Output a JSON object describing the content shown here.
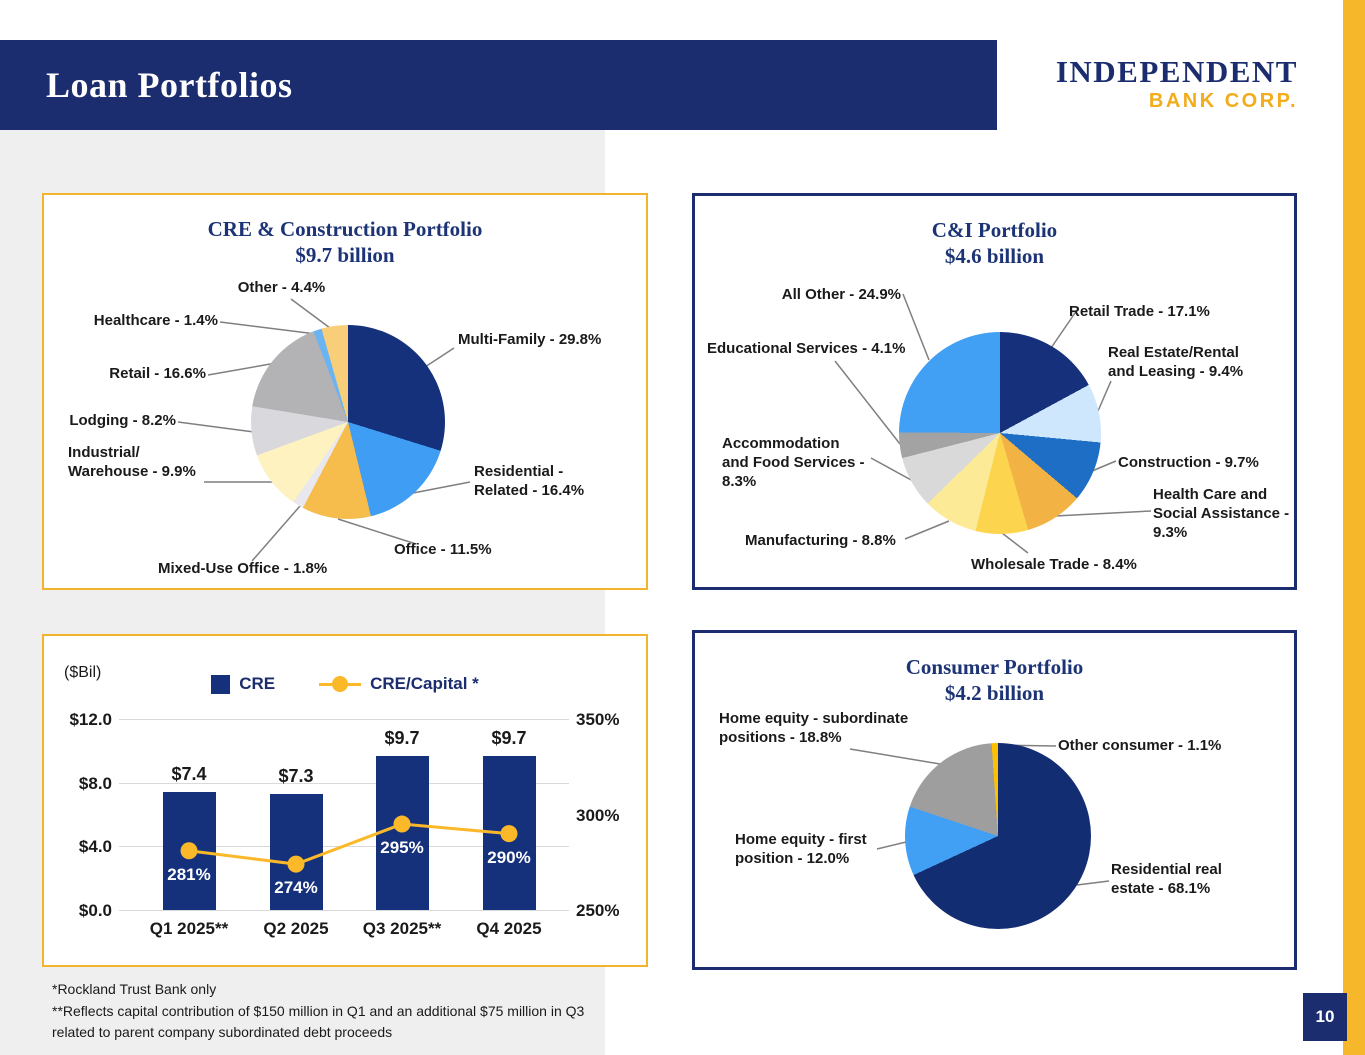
{
  "header": {
    "title": "Loan Portfolios",
    "logo_line1": "INDEPENDENT",
    "logo_line2": "BANK CORP.",
    "page_number": "10"
  },
  "colors": {
    "navy": "#1b2d6e",
    "gold_accent": "#f6b72b",
    "bar_navy": "#16317c",
    "line_gold": "#fbb829",
    "left_background": "#efefef",
    "gridline": "#d9d9d9",
    "leader_line": "#7f7f7f"
  },
  "footnotes": {
    "line1": "*Rockland Trust Bank only",
    "line2": "**Reflects capital contribution of $150 million in Q1 and an additional $75 million in Q3 related to parent company subordinated debt proceeds"
  },
  "chart_data": [
    {
      "id": "cre_construction_pie",
      "type": "pie",
      "title": "CRE & Construction Portfolio",
      "subtitle": "$9.7 billion",
      "slices": [
        {
          "label": "Multi-Family - 29.8%",
          "value": 29.8,
          "color": "#16317c"
        },
        {
          "label": "Residential -\nRelated - 16.4%",
          "value": 16.4,
          "color": "#3f9df3"
        },
        {
          "label": "Office - 11.5%",
          "value": 11.5,
          "color": "#f6bc4c"
        },
        {
          "label": "Mixed-Use Office - 1.8%",
          "value": 1.8,
          "color": "#e8e8ee"
        },
        {
          "label": "Industrial/\nWarehouse - 9.9%",
          "value": 9.9,
          "color": "#fdf2c0"
        },
        {
          "label": "Lodging - 8.2%",
          "value": 8.2,
          "color": "#d9d9dd"
        },
        {
          "label": "Retail - 16.6%",
          "value": 16.6,
          "color": "#b3b3b6"
        },
        {
          "label": "Healthcare - 1.4%",
          "value": 1.4,
          "color": "#6cb3f2"
        },
        {
          "label": "Other - 4.4%",
          "value": 4.4,
          "color": "#f8cf78"
        }
      ]
    },
    {
      "id": "ci_pie",
      "type": "pie",
      "title": "C&I Portfolio",
      "subtitle": "$4.6 billion",
      "slices": [
        {
          "label": "Retail Trade - 17.1%",
          "value": 17.1,
          "color": "#16307c"
        },
        {
          "label": "Real Estate/Rental\nand Leasing - 9.4%",
          "value": 9.4,
          "color": "#cfe7fc"
        },
        {
          "label": "Construction - 9.7%",
          "value": 9.7,
          "color": "#1e6ec6"
        },
        {
          "label": "Health Care and\nSocial Assistance -\n9.3%",
          "value": 9.3,
          "color": "#f2b344"
        },
        {
          "label": "Wholesale Trade - 8.4%",
          "value": 8.4,
          "color": "#fdd44e"
        },
        {
          "label": "Manufacturing - 8.8%",
          "value": 8.8,
          "color": "#fdea96"
        },
        {
          "label": "Accommodation\nand Food Services -\n8.3%",
          "value": 8.3,
          "color": "#d9d9d9"
        },
        {
          "label": "Educational Services - 4.1%",
          "value": 4.1,
          "color": "#a3a3a3"
        },
        {
          "label": "All Other  - 24.9%",
          "value": 24.9,
          "color": "#41a0f4"
        }
      ]
    },
    {
      "id": "cre_trend",
      "type": "bar+line",
      "unit_label": "($Bil)",
      "categories": [
        "Q1 2025**",
        "Q2 2025",
        "Q3 2025**",
        "Q4 2025"
      ],
      "series": [
        {
          "name": "CRE",
          "type": "bar",
          "values": [
            7.4,
            7.3,
            9.7,
            9.7
          ],
          "labels": [
            "$7.4",
            "$7.3",
            "$9.7",
            "$9.7"
          ],
          "color": "#16317c"
        },
        {
          "name": "CRE/Capital *",
          "type": "line",
          "values": [
            281,
            274,
            295,
            290
          ],
          "labels": [
            "281%",
            "274%",
            "295%",
            "290%"
          ],
          "color": "#fbb829"
        }
      ],
      "left_axis": {
        "ticks": [
          "$0.0",
          "$4.0",
          "$8.0",
          "$12.0"
        ],
        "min": 0,
        "max": 12
      },
      "right_axis": {
        "ticks": [
          "250%",
          "300%",
          "350%"
        ],
        "min": 250,
        "max": 350
      },
      "grid": true,
      "legend_position": "top"
    },
    {
      "id": "consumer_pie",
      "type": "pie",
      "title": "Consumer Portfolio",
      "subtitle": "$4.2 billion",
      "slices": [
        {
          "label": "Residential real\nestate - 68.1%",
          "value": 68.1,
          "color": "#132d73"
        },
        {
          "label": "Home equity - first\nposition - 12.0%",
          "value": 12.0,
          "color": "#41a0f4"
        },
        {
          "label": "Home equity - subordinate\npositions - 18.8%",
          "value": 18.8,
          "color": "#9e9e9e"
        },
        {
          "label": "Other consumer - 1.1%",
          "value": 1.1,
          "color": "#ffc000"
        }
      ]
    }
  ]
}
